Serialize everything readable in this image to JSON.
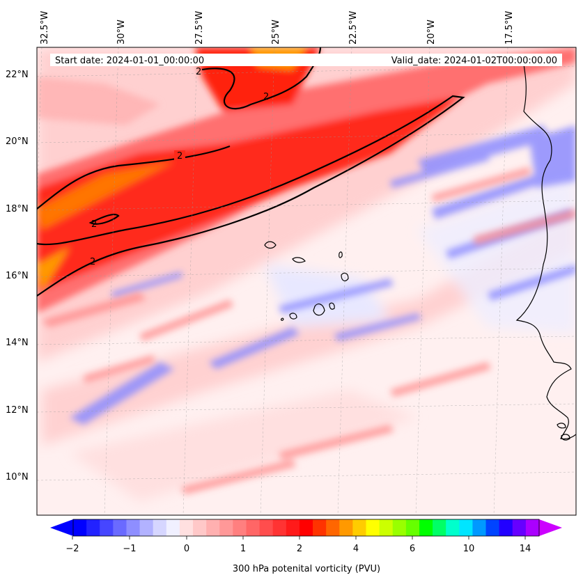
{
  "map": {
    "start_date_text": "Start date: 2024-01-01_00:00:00",
    "valid_date_text": "Valid_date: 2024-01-02T00:00:00.00",
    "lon_labels": [
      "32.5°W",
      "30°W",
      "27.5°W",
      "25°W",
      "22.5°W",
      "20°W",
      "17.5°W"
    ],
    "lat_labels": [
      "22°N",
      "20°N",
      "18°N",
      "16°N",
      "14°N",
      "12°N",
      "10°N"
    ],
    "contour_labels": [
      "2",
      "2",
      "2",
      "2",
      "2"
    ],
    "contour_level": "2",
    "colors": {
      "strong_positive": "#ff1a00",
      "moderate_positive": "#ff6a6a",
      "weak_positive": "#ffd6d6",
      "near_zero": "#f2f2ff",
      "negative": "#7c7cff",
      "coast": "#000000"
    }
  },
  "colorbar": {
    "title": "300 hPa potenital vorticity (PVU)",
    "tick_labels": [
      "−2",
      "−1",
      "0",
      "1",
      "2",
      "4",
      "6",
      "10",
      "14"
    ],
    "colors": [
      "#0000ff",
      "#2222ff",
      "#4646ff",
      "#6a6aff",
      "#8e8eff",
      "#b2b2ff",
      "#d6d6ff",
      "#f0f0ff",
      "#ffe0e0",
      "#ffc8c8",
      "#ffb0b0",
      "#ff9898",
      "#ff7f7f",
      "#ff6666",
      "#ff4d4d",
      "#ff3333",
      "#ff1a1a",
      "#ff0000",
      "#ff3300",
      "#ff6600",
      "#ff9900",
      "#ffcc00",
      "#ffff00",
      "#ccff00",
      "#99ff00",
      "#66ff00",
      "#00ff00",
      "#00ff66",
      "#00ffcc",
      "#00e5ff",
      "#0099ff",
      "#0044ff",
      "#2200ff",
      "#6600ff",
      "#aa00ff"
    ],
    "extend_left_color": "#0000ff",
    "extend_right_color": "#cc00ff"
  }
}
